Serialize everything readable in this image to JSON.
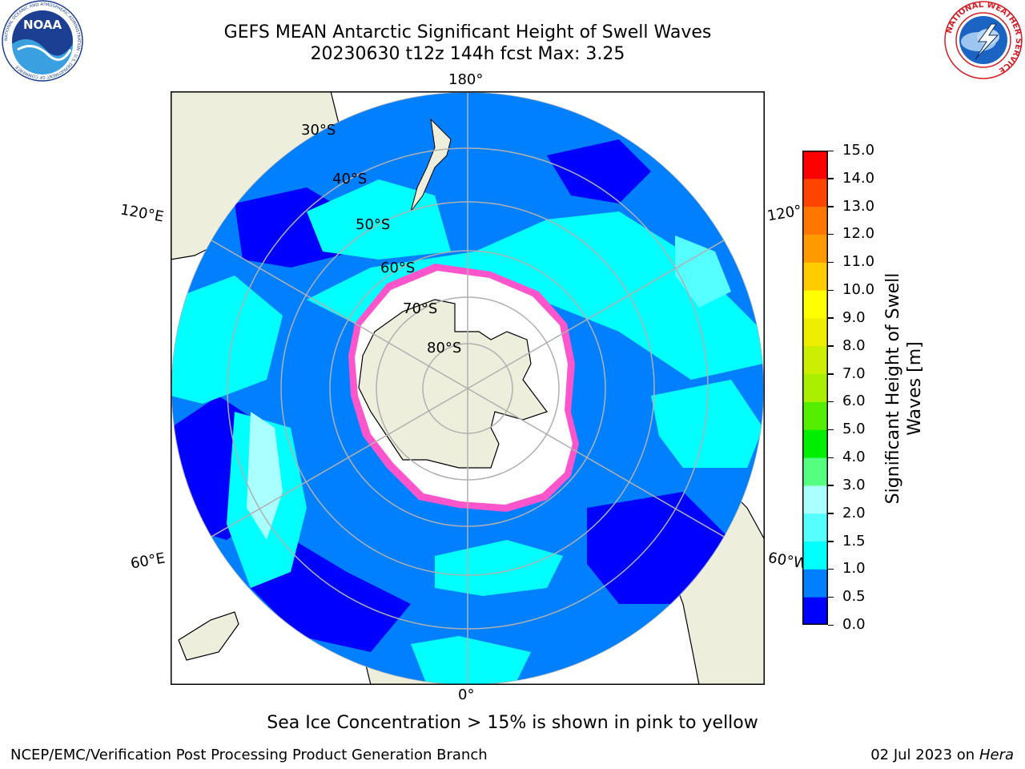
{
  "header": {
    "title_line1": "GEFS MEAN Antarctic Significant Height of Swell Waves",
    "title_line2": "20230630 t12z 144h fcst   Max: 3.25"
  },
  "logos": {
    "noaa": {
      "text": "NOAA",
      "ring_text": "NATIONAL OCEANIC AND ATMOSPHERIC ADMINISTRATION · U.S. DEPARTMENT OF COMMERCE"
    },
    "nws": {
      "ring_text": "NATIONAL WEATHER SERVICE"
    }
  },
  "map": {
    "projection": "south-polar-stereographic",
    "longitude_labels": {
      "top": "180°",
      "bottom": "0°",
      "upper_left": "120°E",
      "upper_right": "120°",
      "lower_left": "60°E",
      "lower_right": "60°W"
    },
    "latitude_labels": [
      "30°S",
      "40°S",
      "50°S",
      "60°S",
      "70°S",
      "80°S"
    ],
    "colors": {
      "land": "#eeeedd",
      "ocean_low": "#0000ff",
      "ocean_mid": "#0080ff",
      "ocean_high": "#00ffff",
      "ice": "#ffffff",
      "ice_edge": "#ff44cc",
      "graticule": "#b0b0b0"
    }
  },
  "colorbar": {
    "label": "Significant Height of Swell Waves [m]",
    "label_line1": "Significant Height of Swell",
    "label_line2": "Waves [m]",
    "ticks": [
      "0.0",
      "0.5",
      "1.0",
      "1.5",
      "2.0",
      "3.0",
      "4.0",
      "5.0",
      "6.0",
      "7.0",
      "8.0",
      "9.0",
      "10.0",
      "11.0",
      "12.0",
      "13.0",
      "14.0",
      "15.0"
    ],
    "colors": [
      "#0000ff",
      "#0080ff",
      "#00ffff",
      "#55ffff",
      "#aaffff",
      "#55ff80",
      "#00ee00",
      "#55ee00",
      "#aaee00",
      "#ccee00",
      "#eeee00",
      "#ffff00",
      "#ffcc00",
      "#ff9900",
      "#ff7700",
      "#ff4400",
      "#ff0000"
    ]
  },
  "note": "Sea Ice Concentration > 15% is shown in pink to yellow",
  "footer": {
    "left": "NCEP/EMC/Verification Post Processing Product Generation Branch",
    "right_date": "02 Jul 2023 on ",
    "right_host": "Hera"
  }
}
